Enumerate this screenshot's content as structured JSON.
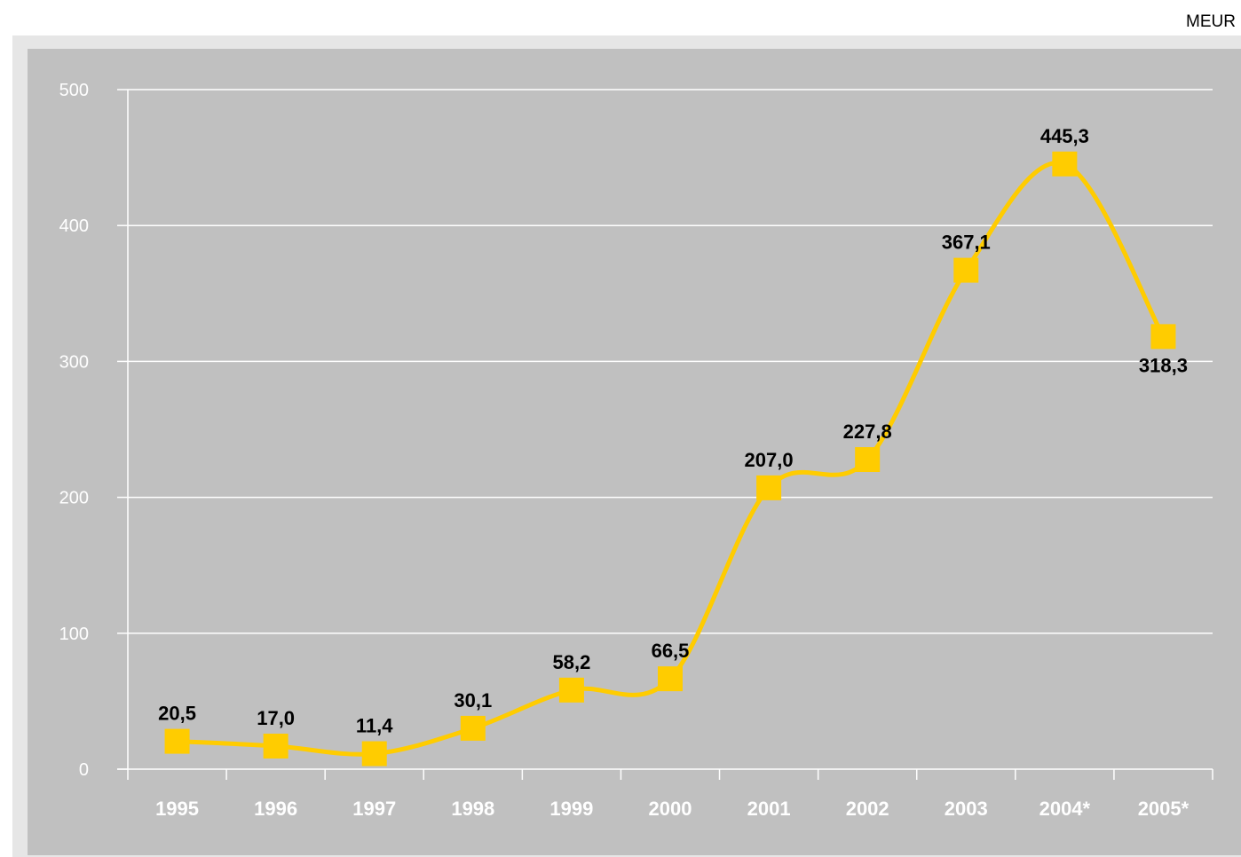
{
  "unit_label": "MEUR",
  "colors": {
    "plot_background": "#c0c0c0",
    "frame_background": "#e6e6e6",
    "gridline": "#ffffff",
    "series": "#ffcc00",
    "data_label": "#000000",
    "tick_label": "#ffffff"
  },
  "chart_data": {
    "type": "line",
    "title": "",
    "xlabel": "",
    "ylabel": "",
    "categories": [
      "1995",
      "1996",
      "1997",
      "1998",
      "1999",
      "2000",
      "2001",
      "2002",
      "2003",
      "2004*",
      "2005*"
    ],
    "series": [
      {
        "values": [
          20.5,
          17.0,
          11.4,
          30.1,
          58.2,
          66.5,
          207.0,
          227.8,
          367.1,
          445.3,
          318.3
        ],
        "labels": [
          "20,5",
          "17,0",
          "11,4",
          "30,1",
          "58,2",
          "66,5",
          "207,0",
          "227,8",
          "367,1",
          "445,3",
          "318,3"
        ],
        "marker": "square",
        "smooth": true
      }
    ],
    "ylim": [
      0,
      500
    ],
    "yticks": [
      "0",
      "100",
      "200",
      "300",
      "400",
      "500"
    ],
    "grid": true,
    "legend": "none"
  }
}
